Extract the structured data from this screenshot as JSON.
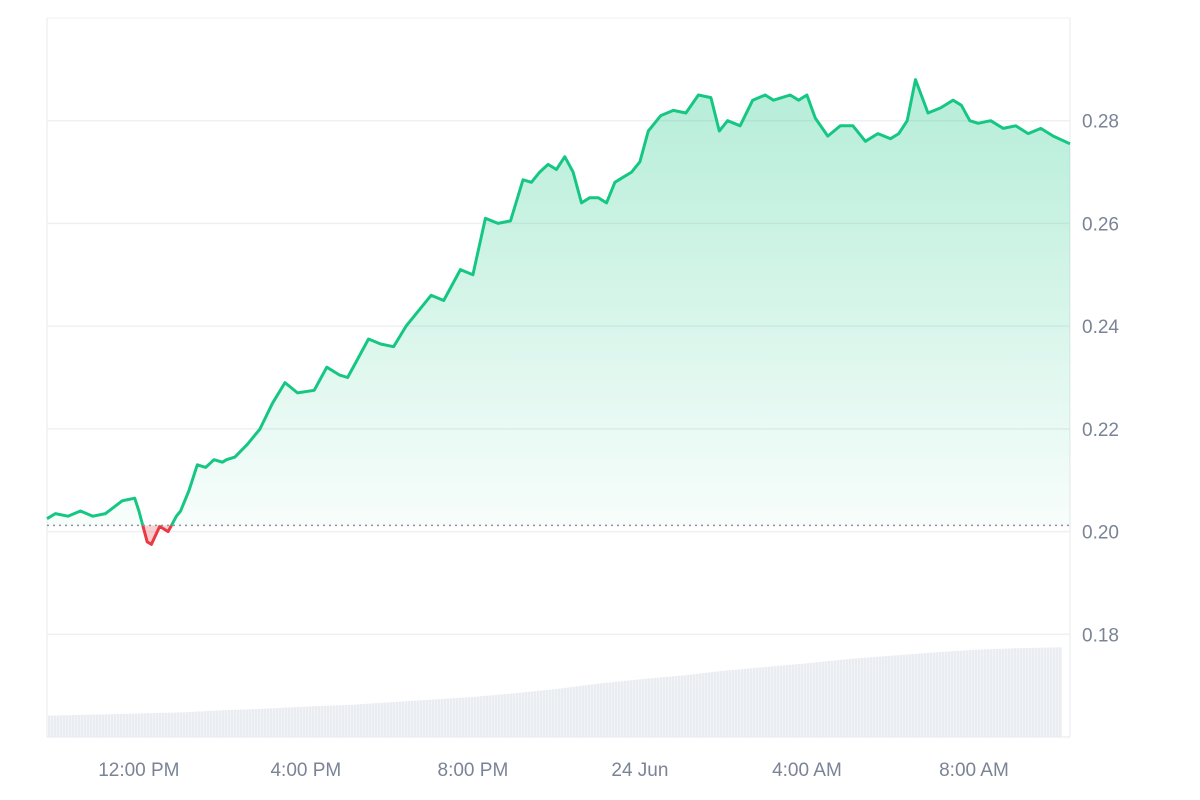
{
  "chart_data": {
    "type": "area",
    "baseline": 0.2012,
    "ylim": [
      0.16,
      0.3
    ],
    "y_ticks": [
      "0.18",
      "0.20",
      "0.22",
      "0.24",
      "0.26",
      "0.28"
    ],
    "y_tick_values": [
      0.18,
      0.2,
      0.22,
      0.24,
      0.26,
      0.28
    ],
    "x_ticks": [
      "12:00 PM",
      "4:00 PM",
      "8:00 PM",
      "24 Jun",
      "4:00 AM",
      "8:00 AM"
    ],
    "x_tick_hours": [
      12,
      16,
      20,
      24,
      28,
      32
    ],
    "x_range_hours": [
      9.8,
      34.3
    ],
    "grid": true,
    "colors": {
      "up": "#16c784",
      "down": "#ea3943",
      "area_top": "#16c784",
      "grid": "#eef0f3",
      "volume": "#e9ecf1",
      "axis_text": "#7a8496"
    },
    "price_series": {
      "x_hours": [
        9.8,
        10.0,
        10.3,
        10.6,
        10.9,
        11.2,
        11.6,
        11.9,
        12.0,
        12.2,
        12.3,
        12.5,
        12.7,
        12.9,
        13.0,
        13.2,
        13.4,
        13.6,
        13.8,
        14.0,
        14.1,
        14.3,
        14.6,
        14.9,
        15.2,
        15.5,
        15.8,
        16.2,
        16.5,
        16.8,
        17.0,
        17.2,
        17.5,
        17.8,
        18.1,
        18.4,
        18.7,
        19.0,
        19.3,
        19.7,
        20.0,
        20.3,
        20.6,
        20.9,
        21.2,
        21.4,
        21.6,
        21.8,
        22.0,
        22.2,
        22.4,
        22.6,
        22.8,
        23.0,
        23.2,
        23.4,
        23.6,
        23.8,
        24.0,
        24.2,
        24.5,
        24.8,
        25.1,
        25.4,
        25.7,
        25.9,
        26.1,
        26.4,
        26.7,
        27.0,
        27.2,
        27.4,
        27.6,
        27.8,
        28.0,
        28.2,
        28.5,
        28.8,
        29.1,
        29.4,
        29.7,
        30.0,
        30.2,
        30.4,
        30.6,
        30.9,
        31.2,
        31.5,
        31.7,
        31.9,
        32.1,
        32.4,
        32.7,
        33.0,
        33.3,
        33.6,
        33.9,
        34.3
      ],
      "y": [
        0.2025,
        0.2035,
        0.203,
        0.204,
        0.203,
        0.2035,
        0.206,
        0.2065,
        0.204,
        0.198,
        0.1975,
        0.201,
        0.2,
        0.203,
        0.204,
        0.208,
        0.213,
        0.2125,
        0.214,
        0.2135,
        0.214,
        0.2145,
        0.217,
        0.22,
        0.225,
        0.229,
        0.227,
        0.2275,
        0.232,
        0.2305,
        0.23,
        0.233,
        0.2375,
        0.2365,
        0.236,
        0.24,
        0.243,
        0.246,
        0.245,
        0.251,
        0.25,
        0.261,
        0.26,
        0.2605,
        0.2685,
        0.268,
        0.27,
        0.2715,
        0.2705,
        0.273,
        0.27,
        0.264,
        0.265,
        0.265,
        0.264,
        0.268,
        0.269,
        0.27,
        0.272,
        0.278,
        0.281,
        0.282,
        0.2815,
        0.285,
        0.2845,
        0.278,
        0.28,
        0.279,
        0.284,
        0.285,
        0.284,
        0.2845,
        0.285,
        0.284,
        0.285,
        0.2805,
        0.277,
        0.279,
        0.279,
        0.276,
        0.2775,
        0.2765,
        0.2775,
        0.28,
        0.288,
        0.2815,
        0.2825,
        0.284,
        0.283,
        0.28,
        0.2795,
        0.28,
        0.2785,
        0.279,
        0.2775,
        0.2785,
        0.277,
        0.2755
      ]
    },
    "volume_series": {
      "x_hours": [
        9.8,
        11.0,
        12.0,
        13.0,
        14.0,
        15.0,
        16.0,
        17.0,
        18.0,
        19.0,
        20.0,
        21.0,
        22.0,
        23.0,
        24.0,
        25.0,
        26.0,
        27.0,
        28.0,
        29.0,
        30.0,
        31.0,
        32.0,
        33.0,
        34.3
      ],
      "values": [
        0.04,
        0.042,
        0.044,
        0.046,
        0.05,
        0.053,
        0.057,
        0.06,
        0.065,
        0.07,
        0.075,
        0.082,
        0.09,
        0.1,
        0.108,
        0.115,
        0.124,
        0.131,
        0.138,
        0.146,
        0.152,
        0.158,
        0.163,
        0.166,
        0.168
      ]
    }
  }
}
